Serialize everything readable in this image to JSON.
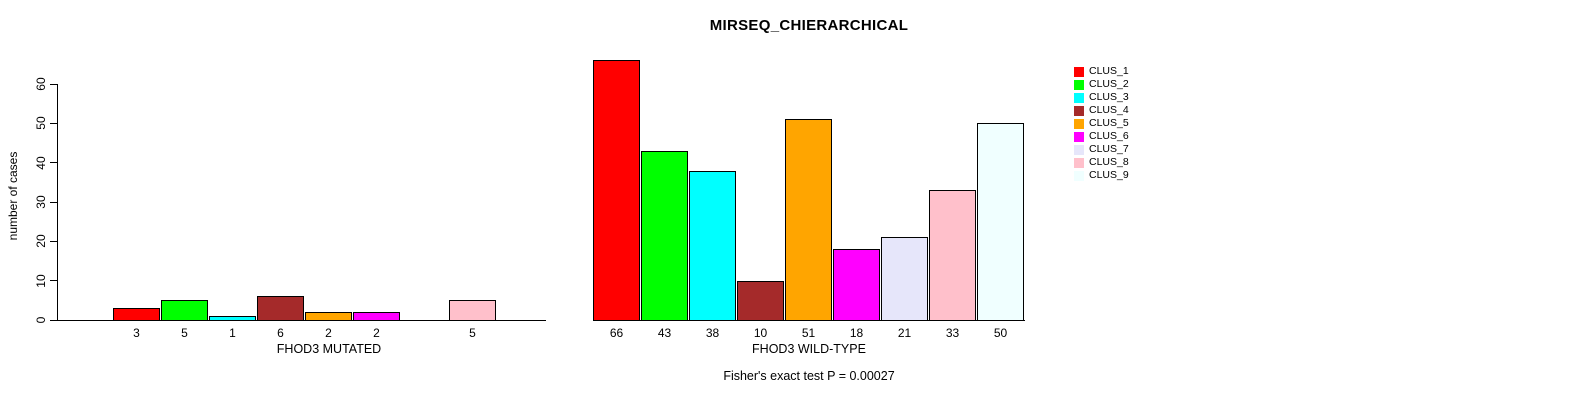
{
  "chart_data": {
    "type": "bar",
    "title": "MIRSEQ_CHIERARCHICAL",
    "ylabel": "number of cases",
    "ylim": [
      0,
      60
    ],
    "yticks": [
      0,
      10,
      20,
      30,
      40,
      50,
      60
    ],
    "grid": false,
    "legend_position": "right",
    "annotation": "Fisher's exact test P = 0.00027",
    "categories": [
      "CLUS_1",
      "CLUS_2",
      "CLUS_3",
      "CLUS_4",
      "CLUS_5",
      "CLUS_6",
      "CLUS_7",
      "CLUS_8",
      "CLUS_9"
    ],
    "colors": [
      "#ff0000",
      "#00ff00",
      "#00ffff",
      "#a52a2a",
      "#ffa500",
      "#ff00ff",
      "#e6e6fa",
      "#ffc0cb",
      "#f0ffff"
    ],
    "panels": [
      {
        "xlabel": "FHOD3 MUTATED",
        "values": [
          3,
          5,
          1,
          6,
          2,
          2,
          0,
          5,
          0
        ],
        "bar_labels": [
          "3",
          "5",
          "1",
          "6",
          "2",
          "2",
          "",
          "5",
          ""
        ]
      },
      {
        "xlabel": "FHOD3 WILD-TYPE",
        "values": [
          66,
          43,
          38,
          10,
          51,
          18,
          21,
          33,
          50
        ],
        "bar_labels": [
          "66",
          "43",
          "38",
          "10",
          "51",
          "18",
          "21",
          "33",
          "50"
        ]
      }
    ]
  }
}
